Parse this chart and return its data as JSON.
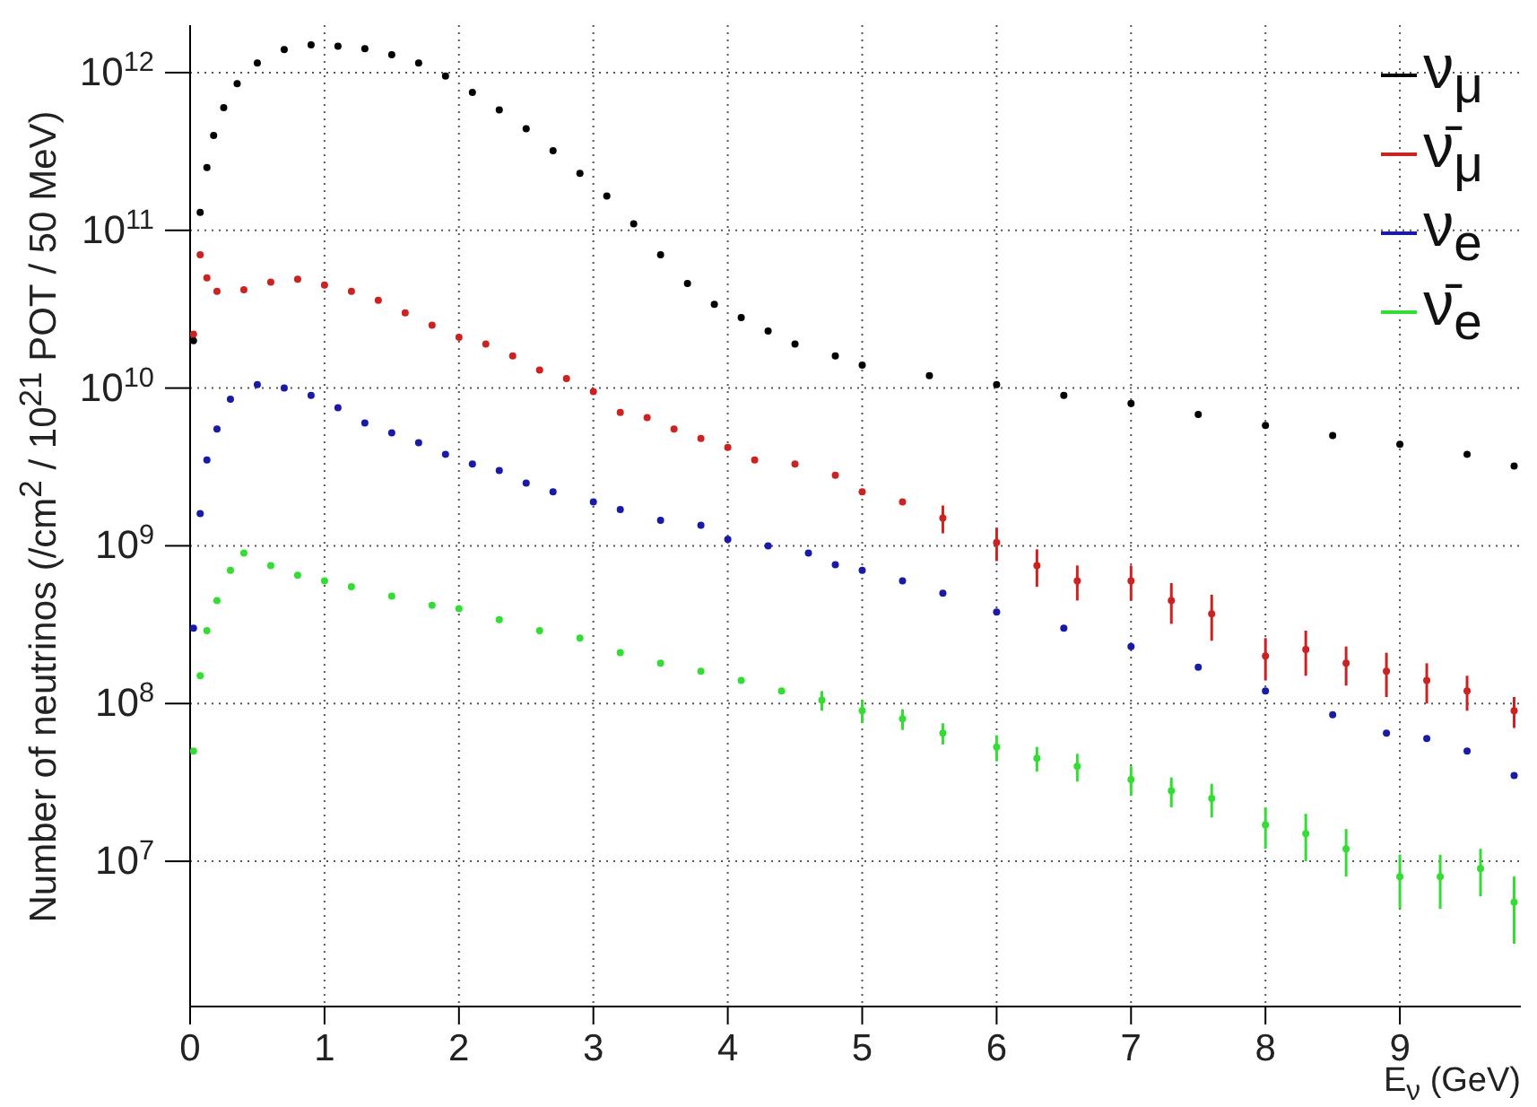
{
  "chart_data": {
    "type": "scatter",
    "xlabel": "E$_{ν}$ (GeV)",
    "ylabel": "Number of neutrinos (/cm$^{2}$ / 10$^{21}$ POT / 50 MeV)",
    "xlim": [
      0,
      9.9
    ],
    "xticks": [
      0,
      1,
      2,
      3,
      4,
      5,
      6,
      7,
      8,
      9
    ],
    "ylim": [
      1200000,
      2000000000000
    ],
    "log": true,
    "yticks": [
      {
        "value": 10000000,
        "label": "10$^{7}$"
      },
      {
        "value": 100000000,
        "label": "10$^{8}$"
      },
      {
        "value": 1000000000,
        "label": "10$^{9}$"
      },
      {
        "value": 10000000000,
        "label": "10$^{10}$"
      },
      {
        "value": 100000000000,
        "label": "10$^{11}$"
      },
      {
        "value": 1000000000000,
        "label": "10$^{12}$"
      }
    ],
    "grid": true,
    "legend": "top right",
    "marker": "circle",
    "series": [
      {
        "name": "ν$_{μ}$",
        "color": "#000000",
        "x": [
          0.025,
          0.075,
          0.125,
          0.175,
          0.25,
          0.35,
          0.5,
          0.7,
          0.9,
          1.1,
          1.3,
          1.5,
          1.7,
          1.9,
          2.1,
          2.3,
          2.5,
          2.7,
          2.9,
          3.1,
          3.3,
          3.5,
          3.7,
          3.9,
          4.1,
          4.3,
          4.5,
          4.8,
          5.0,
          5.5,
          6.0,
          6.5,
          7.0,
          7.5,
          8.0,
          8.5,
          9.0,
          9.5,
          9.85
        ],
        "values": [
          20000000000.0,
          130000000000.0,
          250000000000.0,
          400000000000.0,
          600000000000.0,
          850000000000.0,
          1150000000000.0,
          1400000000000.0,
          1500000000000.0,
          1470000000000.0,
          1420000000000.0,
          1300000000000.0,
          1150000000000.0,
          950000000000.0,
          750000000000.0,
          580000000000.0,
          440000000000.0,
          320000000000.0,
          230000000000.0,
          165000000000.0,
          110000000000.0,
          70000000000.0,
          46000000000.0,
          34000000000.0,
          28000000000.0,
          23000000000.0,
          19000000000.0,
          16000000000.0,
          14000000000.0,
          12000000000.0,
          10500000000.0,
          9000000000.0,
          8000000000.0,
          6800000000.0,
          5800000000.0,
          5000000000.0,
          4400000000.0,
          3800000000.0,
          3200000000.0
        ]
      },
      {
        "name": "ν̄$_{μ}$",
        "color": "#cc2222",
        "x": [
          0.025,
          0.075,
          0.125,
          0.2,
          0.4,
          0.6,
          0.8,
          1.0,
          1.2,
          1.4,
          1.6,
          1.8,
          2.0,
          2.2,
          2.4,
          2.6,
          2.8,
          3.0,
          3.2,
          3.4,
          3.6,
          3.8,
          4.0,
          4.2,
          4.5,
          4.8,
          5.0,
          5.3,
          5.6,
          6.0,
          6.3,
          6.6,
          7.0,
          7.3,
          7.6,
          8.0,
          8.3,
          8.6,
          8.9,
          9.2,
          9.5,
          9.85
        ],
        "values": [
          22000000000.0,
          70000000000.0,
          50000000000.0,
          41000000000.0,
          42000000000.0,
          47000000000.0,
          49000000000.0,
          45000000000.0,
          41000000000.0,
          36000000000.0,
          30000000000.0,
          25000000000.0,
          21000000000.0,
          19000000000.0,
          16000000000.0,
          13000000000.0,
          11500000000.0,
          9500000000.0,
          7000000000.0,
          6500000000.0,
          5500000000.0,
          4800000000.0,
          4200000000.0,
          3500000000.0,
          3300000000.0,
          2800000000.0,
          2200000000.0,
          1900000000.0,
          1500000000.0,
          1050000000.0,
          750000000.0,
          600000000.0,
          600000000.0,
          450000000.0,
          370000000.0,
          200000000.0,
          220000000.0,
          180000000.0,
          160000000.0,
          140000000.0,
          120000000.0,
          90000000.0
        ],
        "errors": [
          null,
          null,
          null,
          null,
          null,
          null,
          null,
          null,
          null,
          null,
          null,
          null,
          null,
          null,
          null,
          null,
          null,
          null,
          null,
          null,
          null,
          null,
          null,
          null,
          null,
          null,
          null,
          null,
          300000000.0,
          250000000.0,
          200000000.0,
          150000000.0,
          150000000.0,
          130000000.0,
          120000000.0,
          60000000.0,
          70000000.0,
          50000000.0,
          50000000.0,
          40000000.0,
          30000000.0,
          20000000.0
        ]
      },
      {
        "name": "ν$_{e}$",
        "color": "#1a1aa8",
        "x": [
          0.025,
          0.075,
          0.125,
          0.2,
          0.3,
          0.5,
          0.7,
          0.9,
          1.1,
          1.3,
          1.5,
          1.7,
          1.9,
          2.1,
          2.3,
          2.5,
          2.7,
          3.0,
          3.2,
          3.5,
          3.8,
          4.0,
          4.3,
          4.6,
          4.8,
          5.0,
          5.3,
          5.6,
          6.0,
          6.5,
          7.0,
          7.5,
          8.0,
          8.5,
          8.9,
          9.2,
          9.5,
          9.85
        ],
        "values": [
          300000000.0,
          1600000000.0,
          3500000000.0,
          5500000000.0,
          8500000000.0,
          10500000000.0,
          10000000000.0,
          9000000000.0,
          7500000000.0,
          6000000000.0,
          5200000000.0,
          4500000000.0,
          3800000000.0,
          3300000000.0,
          3000000000.0,
          2500000000.0,
          2200000000.0,
          1900000000.0,
          1700000000.0,
          1450000000.0,
          1350000000.0,
          1100000000.0,
          1000000000.0,
          900000000.0,
          760000000.0,
          700000000.0,
          600000000.0,
          500000000.0,
          380000000.0,
          300000000.0,
          230000000.0,
          170000000.0,
          120000000.0,
          85000000.0,
          65000000.0,
          60000000.0,
          50000000.0,
          35000000.0
        ]
      },
      {
        "name": "ν̄$_{e}$",
        "color": "#33dd33",
        "x": [
          0.025,
          0.075,
          0.125,
          0.2,
          0.3,
          0.4,
          0.6,
          0.8,
          1.0,
          1.2,
          1.5,
          1.8,
          2.0,
          2.3,
          2.6,
          2.9,
          3.2,
          3.5,
          3.8,
          4.1,
          4.4,
          4.7,
          5.0,
          5.3,
          5.6,
          6.0,
          6.3,
          6.6,
          7.0,
          7.3,
          7.6,
          8.0,
          8.3,
          8.6,
          9.0,
          9.3,
          9.6,
          9.85
        ],
        "values": [
          50000000.0,
          150000000.0,
          290000000.0,
          450000000.0,
          700000000.0,
          900000000.0,
          750000000.0,
          650000000.0,
          600000000.0,
          550000000.0,
          480000000.0,
          420000000.0,
          400000000.0,
          340000000.0,
          290000000.0,
          260000000.0,
          210000000.0,
          180000000.0,
          160000000.0,
          140000000.0,
          120000000.0,
          105000000.0,
          90000000.0,
          80000000.0,
          65000000.0,
          53000000.0,
          45000000.0,
          40000000.0,
          33000000.0,
          28000000.0,
          25000000.0,
          17000000.0,
          15000000.0,
          12000000.0,
          8000000.0,
          8000000.0,
          9000000.0,
          5500000.0
        ],
        "errors": [
          null,
          null,
          null,
          null,
          null,
          null,
          null,
          null,
          null,
          null,
          null,
          null,
          null,
          null,
          null,
          null,
          null,
          null,
          null,
          null,
          null,
          15000000.0,
          15000000.0,
          12000000.0,
          10000000.0,
          10000000.0,
          8000000.0,
          8000000.0,
          7000000.0,
          6000000.0,
          6000000.0,
          5000000.0,
          5000000.0,
          4000000.0,
          3000000.0,
          3000000.0,
          3000000.0,
          2500000.0
        ]
      }
    ]
  }
}
